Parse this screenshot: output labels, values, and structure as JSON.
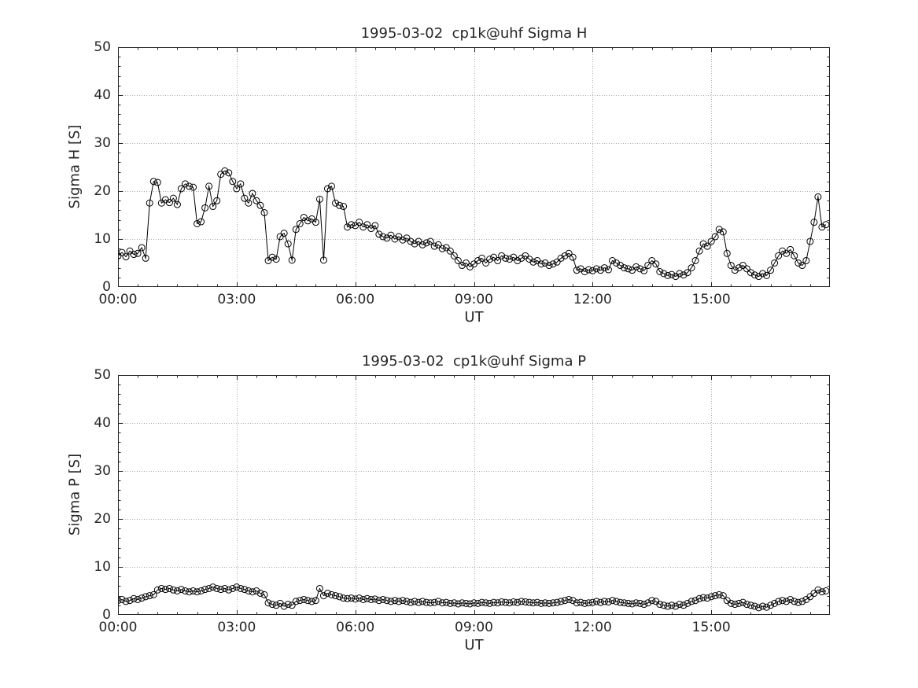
{
  "figure": {
    "background": "#ffffff"
  },
  "chart_data": [
    {
      "type": "line",
      "title": "1995-03-02  cp1k@uhf Sigma H",
      "xlabel": "UT",
      "ylabel": "Sigma H [S]",
      "xlim": [
        0,
        18
      ],
      "ylim": [
        0,
        50
      ],
      "x_ticks": [
        0,
        3,
        6,
        9,
        12,
        15
      ],
      "x_tick_labels": [
        "00:00",
        "03:00",
        "06:00",
        "09:00",
        "12:00",
        "15:00"
      ],
      "y_ticks": [
        0,
        10,
        20,
        30,
        40,
        50
      ],
      "x_minor_step": 0.5,
      "y_minor_step": 2,
      "x_start": 0,
      "x_step": 0.1,
      "grid": true,
      "line_color": "#000000",
      "axis_color": "#262626",
      "grid_color": "#aaaaaa",
      "marker": "circle",
      "marker_radius": 4,
      "values": [
        6.5,
        7.2,
        6.3,
        7.5,
        6.8,
        7.0,
        8.2,
        6.0,
        17.5,
        22.0,
        21.8,
        17.5,
        18.2,
        17.6,
        18.5,
        17.2,
        20.5,
        21.5,
        21.0,
        20.8,
        13.2,
        13.6,
        16.5,
        21.0,
        16.8,
        18.0,
        23.5,
        24.2,
        23.8,
        22.0,
        20.5,
        21.5,
        18.5,
        17.5,
        19.5,
        18.0,
        17.0,
        15.5,
        5.5,
        6.2,
        5.8,
        10.5,
        11.2,
        9.0,
        5.6,
        12.0,
        13.2,
        14.5,
        13.8,
        14.2,
        13.5,
        18.3,
        5.6,
        20.5,
        21.0,
        17.5,
        17.0,
        16.8,
        12.5,
        13.0,
        12.8,
        13.5,
        12.5,
        13.0,
        12.2,
        12.8,
        11.0,
        10.5,
        10.2,
        10.8,
        10.0,
        10.5,
        9.8,
        10.2,
        9.5,
        9.0,
        9.5,
        8.8,
        9.2,
        9.5,
        8.5,
        8.8,
        8.0,
        8.2,
        7.5,
        6.5,
        5.5,
        4.5,
        5.0,
        4.2,
        4.8,
        5.5,
        6.0,
        5.0,
        5.8,
        6.2,
        5.5,
        6.5,
        6.0,
        5.8,
        6.2,
        5.5,
        6.0,
        6.5,
        5.8,
        5.2,
        5.5,
        4.8,
        5.0,
        4.5,
        4.8,
        5.2,
        6.0,
        6.5,
        7.0,
        6.2,
        3.5,
        3.8,
        3.2,
        3.6,
        3.4,
        3.8,
        3.5,
        4.0,
        3.6,
        5.5,
        5.0,
        4.5,
        4.0,
        3.8,
        3.5,
        4.2,
        3.8,
        3.4,
        4.5,
        5.5,
        4.8,
        3.2,
        2.8,
        2.4,
        2.6,
        2.2,
        2.8,
        2.5,
        3.0,
        4.0,
        5.5,
        7.5,
        9.0,
        8.5,
        9.5,
        10.5,
        12.0,
        11.5,
        7.0,
        4.5,
        3.5,
        4.0,
        4.5,
        3.8,
        3.0,
        2.5,
        2.2,
        2.8,
        2.4,
        3.5,
        5.0,
        6.5,
        7.5,
        7.0,
        7.8,
        6.5,
        5.0,
        4.5,
        5.5,
        9.5,
        13.5,
        18.8,
        12.5,
        13.0
      ]
    },
    {
      "type": "line",
      "title": "1995-03-02  cp1k@uhf Sigma P",
      "xlabel": "UT",
      "ylabel": "Sigma P [S]",
      "xlim": [
        0,
        18
      ],
      "ylim": [
        0,
        50
      ],
      "x_ticks": [
        0,
        3,
        6,
        9,
        12,
        15
      ],
      "x_tick_labels": [
        "00:00",
        "03:00",
        "06:00",
        "09:00",
        "12:00",
        "15:00"
      ],
      "y_ticks": [
        0,
        10,
        20,
        30,
        40,
        50
      ],
      "x_minor_step": 0.5,
      "y_minor_step": 2,
      "x_start": 0,
      "x_step": 0.1,
      "grid": true,
      "line_color": "#000000",
      "axis_color": "#262626",
      "grid_color": "#aaaaaa",
      "marker": "circle",
      "marker_radius": 4,
      "values": [
        3.0,
        3.2,
        2.8,
        3.0,
        3.4,
        3.2,
        3.5,
        3.8,
        4.0,
        4.2,
        5.2,
        5.5,
        5.3,
        5.5,
        5.2,
        5.0,
        5.3,
        5.0,
        4.8,
        5.0,
        4.8,
        5.0,
        5.3,
        5.5,
        5.8,
        5.5,
        5.3,
        5.5,
        5.2,
        5.5,
        5.8,
        5.5,
        5.3,
        5.0,
        4.8,
        5.0,
        4.5,
        4.2,
        2.5,
        2.2,
        2.0,
        2.4,
        1.8,
        2.2,
        2.0,
        2.8,
        3.0,
        3.2,
        3.0,
        2.8,
        3.0,
        5.5,
        4.0,
        4.5,
        4.2,
        4.0,
        3.8,
        3.5,
        3.4,
        3.5,
        3.3,
        3.5,
        3.2,
        3.4,
        3.2,
        3.3,
        3.0,
        3.2,
        3.0,
        2.8,
        3.0,
        2.8,
        3.0,
        2.8,
        2.6,
        2.8,
        2.6,
        2.8,
        2.6,
        2.5,
        2.6,
        2.8,
        2.5,
        2.6,
        2.4,
        2.5,
        2.3,
        2.5,
        2.4,
        2.3,
        2.5,
        2.4,
        2.6,
        2.5,
        2.4,
        2.6,
        2.5,
        2.7,
        2.6,
        2.5,
        2.7,
        2.6,
        2.8,
        2.7,
        2.6,
        2.5,
        2.6,
        2.4,
        2.5,
        2.4,
        2.5,
        2.6,
        2.8,
        3.0,
        3.2,
        3.0,
        2.5,
        2.6,
        2.4,
        2.5,
        2.6,
        2.8,
        2.6,
        2.8,
        2.7,
        3.0,
        2.8,
        2.6,
        2.5,
        2.4,
        2.3,
        2.5,
        2.4,
        2.2,
        2.5,
        3.0,
        2.8,
        2.2,
        2.0,
        1.8,
        2.0,
        1.8,
        2.2,
        2.0,
        2.4,
        2.8,
        3.0,
        3.4,
        3.6,
        3.5,
        3.8,
        4.0,
        4.2,
        4.0,
        3.0,
        2.4,
        2.2,
        2.4,
        2.6,
        2.2,
        2.0,
        1.8,
        1.5,
        1.8,
        1.6,
        2.0,
        2.4,
        2.8,
        3.0,
        2.8,
        3.2,
        2.8,
        2.6,
        2.8,
        3.2,
        3.8,
        4.5,
        5.2,
        4.8,
        5.0
      ]
    }
  ]
}
